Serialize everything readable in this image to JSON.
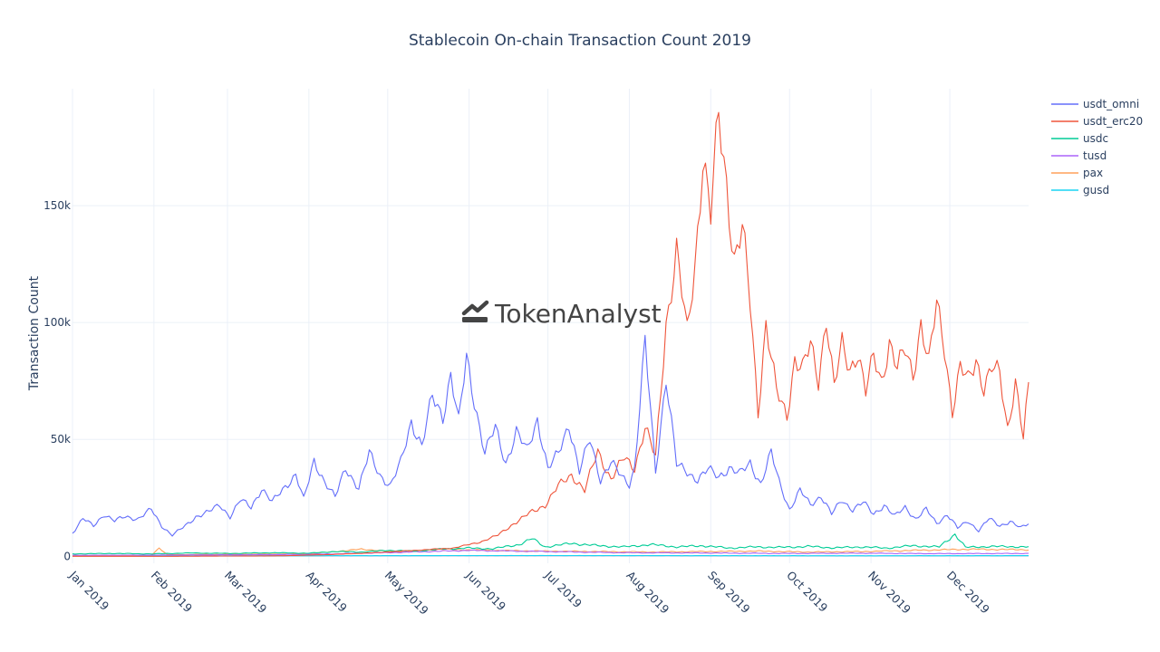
{
  "chart_data": {
    "type": "line",
    "title": "Stablecoin On-chain Transaction Count 2019",
    "xlabel": "",
    "ylabel": "Transaction Count",
    "watermark": "TokenAnalyst",
    "x_start": "2019-01-01",
    "x_end": "2019-12-31",
    "ylim": [
      -3000,
      200000
    ],
    "yticks": [
      0,
      50000,
      100000,
      150000
    ],
    "ytick_labels": [
      "0",
      "50k",
      "100k",
      "150k"
    ],
    "xtick_labels": [
      "Jan 2019",
      "Feb 2019",
      "Mar 2019",
      "Apr 2019",
      "May 2019",
      "Jun 2019",
      "Jul 2019",
      "Aug 2019",
      "Sep 2019",
      "Oct 2019",
      "Nov 2019",
      "Dec 2019"
    ],
    "grid": true,
    "legend": "top-right",
    "series": [
      {
        "name": "usdt_omni",
        "color": "#636efa",
        "days": [
          0,
          4,
          8,
          12,
          16,
          20,
          25,
          30,
          34,
          38,
          43,
          47,
          52,
          56,
          60,
          64,
          68,
          72,
          76,
          81,
          85,
          88,
          92,
          96,
          100,
          104,
          109,
          113,
          117,
          121,
          125,
          129,
          133,
          137,
          141,
          144,
          147,
          150,
          153,
          157,
          161,
          165,
          169,
          173,
          177,
          181,
          185,
          189,
          193,
          197,
          201,
          205,
          209,
          212,
          214,
          218,
          222,
          226,
          230,
          234,
          238,
          242,
          246,
          250,
          254,
          258,
          262,
          266,
          269,
          273,
          277,
          281,
          285,
          289,
          293,
          297,
          301,
          305,
          309,
          313,
          317,
          321,
          325,
          329,
          333,
          337,
          341,
          345,
          349,
          353,
          357,
          361,
          364
        ],
        "values": [
          10000,
          16000,
          13000,
          18000,
          15000,
          17000,
          16000,
          20000,
          13000,
          9000,
          13000,
          17000,
          19000,
          22000,
          17000,
          24000,
          21000,
          29000,
          23000,
          30000,
          35000,
          24000,
          41000,
          32000,
          25000,
          38000,
          29000,
          44000,
          35000,
          30000,
          40000,
          58000,
          47000,
          68000,
          60000,
          78000,
          57000,
          85000,
          67000,
          44000,
          55000,
          40000,
          53000,
          45000,
          59000,
          37000,
          44000,
          57000,
          36000,
          50000,
          33000,
          40000,
          34000,
          31000,
          38000,
          91000,
          36000,
          77000,
          39000,
          36000,
          33000,
          37000,
          34000,
          38000,
          35000,
          40000,
          31000,
          44000,
          32000,
          20000,
          28000,
          22000,
          26000,
          18000,
          24000,
          20000,
          23000,
          18000,
          22000,
          17000,
          21000,
          16000,
          20000,
          14000,
          18000,
          12000,
          15000,
          11000,
          16000,
          13000,
          15000,
          12000,
          14000
        ]
      },
      {
        "name": "usdt_erc20",
        "color": "#ef553b",
        "days": [
          0,
          40,
          80,
          100,
          115,
          130,
          145,
          155,
          162,
          168,
          175,
          180,
          185,
          190,
          195,
          200,
          205,
          210,
          214,
          218,
          222,
          226,
          230,
          234,
          237,
          240,
          243,
          246,
          249,
          252,
          255,
          258,
          261,
          264,
          268,
          272,
          275,
          278,
          281,
          284,
          287,
          290,
          293,
          296,
          299,
          302,
          305,
          308,
          311,
          314,
          317,
          320,
          323,
          326,
          329,
          332,
          335,
          338,
          341,
          344,
          347,
          350,
          353,
          356,
          359,
          362,
          364
        ],
        "values": [
          0,
          0,
          200,
          800,
          1500,
          2500,
          3500,
          6000,
          9000,
          14000,
          19000,
          22000,
          30000,
          35000,
          28000,
          45000,
          33000,
          42000,
          38000,
          55000,
          42000,
          100000,
          130000,
          95000,
          125000,
          172000,
          145000,
          188000,
          160000,
          127000,
          140000,
          108000,
          62000,
          100000,
          70000,
          60000,
          85000,
          80000,
          90000,
          75000,
          103000,
          72000,
          90000,
          80000,
          88000,
          70000,
          85000,
          75000,
          92000,
          80000,
          88000,
          78000,
          100000,
          82000,
          108000,
          90000,
          62000,
          80000,
          75000,
          85000,
          72000,
          80000,
          78000,
          55000,
          75000,
          50000,
          72000
        ]
      },
      {
        "name": "usdc",
        "color": "#00cc96",
        "days": [
          0,
          15,
          30,
          45,
          60,
          75,
          90,
          100,
          110,
          120,
          130,
          140,
          150,
          160,
          170,
          175,
          180,
          190,
          200,
          210,
          220,
          230,
          240,
          250,
          260,
          270,
          280,
          290,
          300,
          310,
          320,
          330,
          336,
          340,
          350,
          364
        ],
        "values": [
          1000,
          1200,
          1000,
          1400,
          1200,
          1500,
          1300,
          2000,
          1800,
          2500,
          2200,
          3000,
          3500,
          3200,
          5000,
          7500,
          4000,
          5500,
          4500,
          4000,
          5000,
          4000,
          4500,
          3500,
          4000,
          3800,
          4200,
          3600,
          4000,
          3500,
          4500,
          4000,
          9500,
          3800,
          4200,
          4000
        ]
      },
      {
        "name": "tusd",
        "color": "#ab63fa",
        "days": [
          0,
          30,
          60,
          90,
          120,
          150,
          180,
          210,
          240,
          270,
          300,
          330,
          364
        ],
        "values": [
          400,
          500,
          600,
          800,
          1500,
          2500,
          2000,
          1500,
          1400,
          1200,
          1300,
          1100,
          1200
        ]
      },
      {
        "name": "pax",
        "color": "#ffa15a",
        "days": [
          0,
          20,
          30,
          33,
          36,
          60,
          90,
          110,
          125,
          140,
          160,
          180,
          200,
          220,
          240,
          260,
          280,
          300,
          320,
          340,
          364
        ],
        "values": [
          200,
          300,
          500,
          3500,
          700,
          800,
          1000,
          3000,
          1800,
          3000,
          2500,
          2200,
          2000,
          1800,
          2000,
          2200,
          1800,
          2000,
          2500,
          3000,
          2800
        ]
      },
      {
        "name": "gusd",
        "color": "#19d3f3",
        "days": [
          0,
          60,
          120,
          180,
          240,
          300,
          364
        ],
        "values": [
          150,
          200,
          250,
          300,
          250,
          200,
          250
        ]
      }
    ]
  }
}
